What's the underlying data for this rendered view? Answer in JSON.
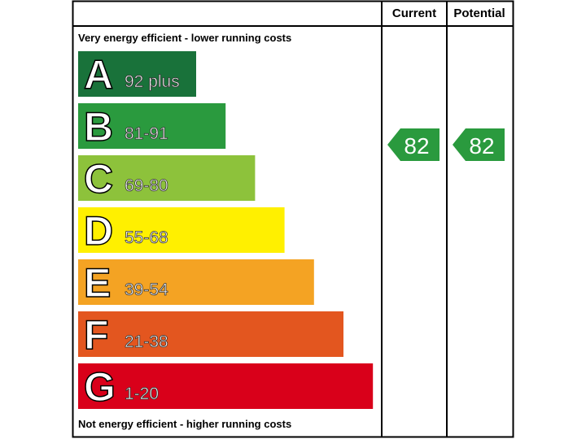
{
  "header": {
    "current": "Current",
    "potential": "Potential"
  },
  "top_note": "Very energy efficient - lower running costs",
  "bottom_note": "Not energy efficient - higher running costs",
  "bands": [
    {
      "letter": "A",
      "range": "92 plus",
      "color": "#19723a"
    },
    {
      "letter": "B",
      "range": "81-91",
      "color": "#2a9a3e"
    },
    {
      "letter": "C",
      "range": "69-80",
      "color": "#8dc23b"
    },
    {
      "letter": "D",
      "range": "55-68",
      "color": "#fff000"
    },
    {
      "letter": "E",
      "range": "39-54",
      "color": "#f4a323"
    },
    {
      "letter": "F",
      "range": "21-38",
      "color": "#e3561f"
    },
    {
      "letter": "G",
      "range": "1-20",
      "color": "#d9001a"
    }
  ],
  "current": {
    "value": "82",
    "color": "#2a9a3e"
  },
  "potential": {
    "value": "82",
    "color": "#2a9a3e"
  }
}
